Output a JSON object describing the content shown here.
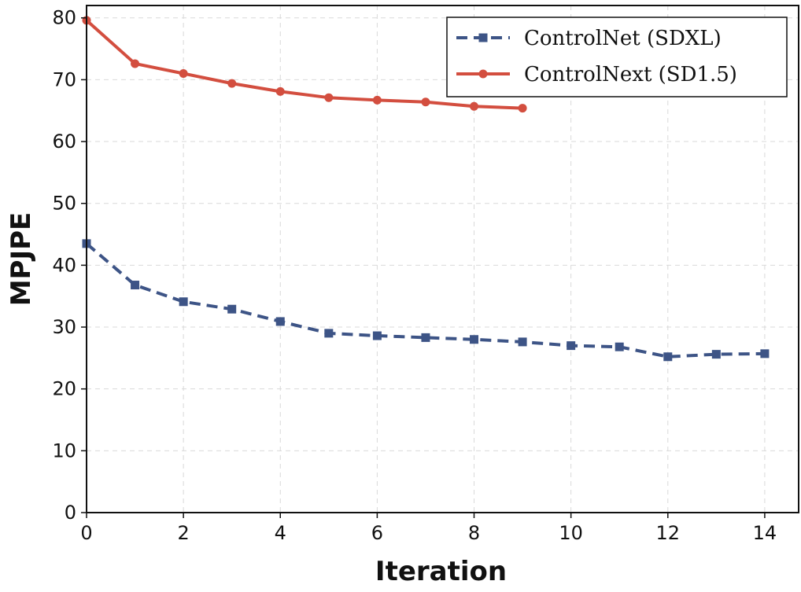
{
  "chart_data": {
    "type": "line",
    "title": "",
    "xlabel": "Iteration",
    "ylabel": "MPJPE",
    "xlim": [
      0,
      14.7
    ],
    "ylim": [
      0,
      82
    ],
    "x_ticks": [
      0,
      2,
      4,
      6,
      8,
      10,
      12,
      14
    ],
    "y_ticks": [
      0,
      10,
      20,
      30,
      40,
      50,
      60,
      70,
      80
    ],
    "grid": true,
    "legend_position": "top-right",
    "series": [
      {
        "name": "ControlNet (SDXL)",
        "color": "#3d5486",
        "line_style": "dashed",
        "marker": "square",
        "x": [
          0,
          1,
          2,
          3,
          4,
          5,
          6,
          7,
          8,
          9,
          10,
          11,
          12,
          13,
          14
        ],
        "values": [
          43.5,
          36.8,
          34.1,
          32.9,
          30.9,
          29.0,
          28.6,
          28.3,
          28.0,
          27.6,
          27.0,
          26.8,
          25.2,
          25.6,
          25.7
        ]
      },
      {
        "name": "ControlNext (SD1.5)",
        "color": "#d34e3f",
        "line_style": "solid",
        "marker": "circle",
        "x": [
          0,
          1,
          2,
          3,
          4,
          5,
          6,
          7,
          8,
          9
        ],
        "values": [
          79.6,
          72.6,
          71.0,
          69.4,
          68.1,
          67.1,
          66.7,
          66.4,
          65.7,
          65.4
        ]
      }
    ]
  }
}
